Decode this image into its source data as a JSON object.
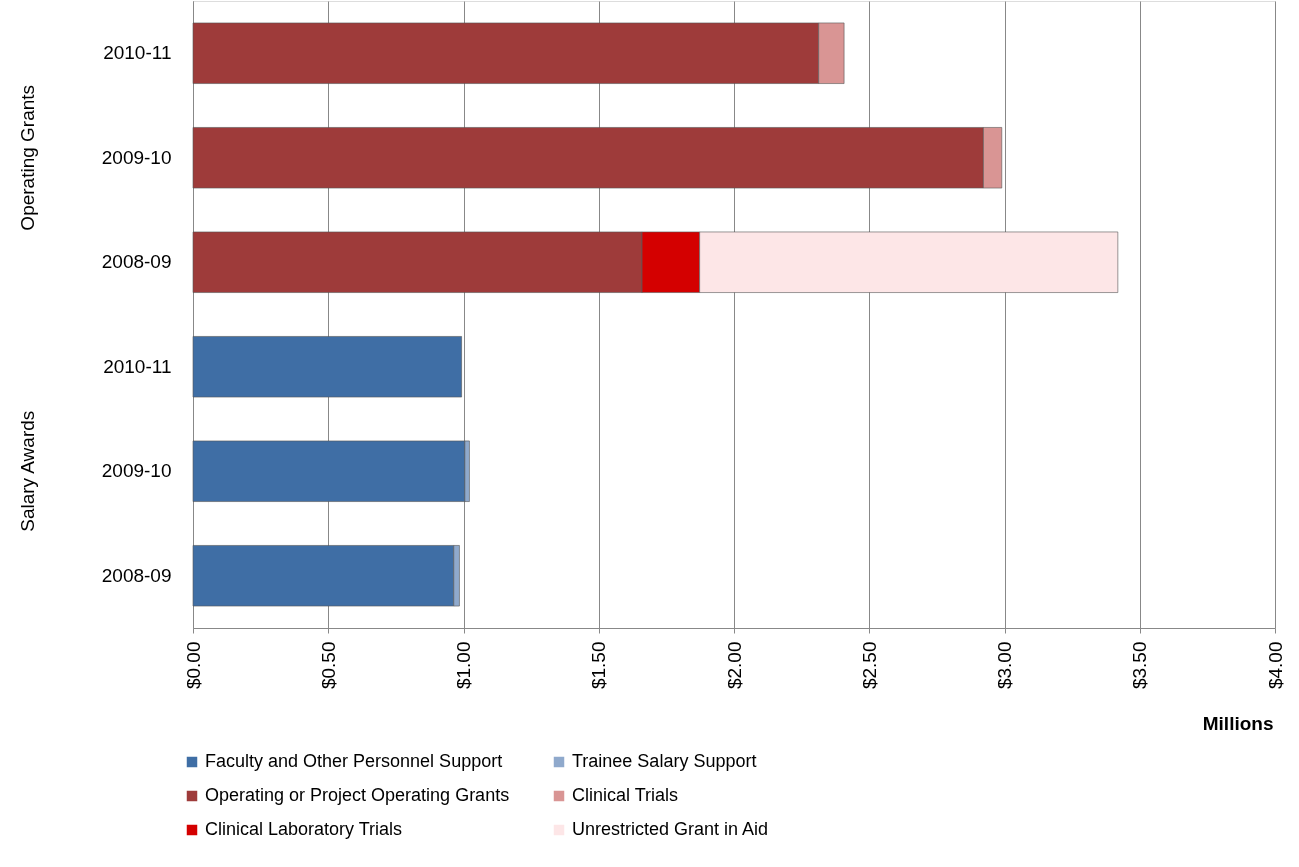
{
  "chart_data": {
    "type": "bar",
    "orientation": "horizontal",
    "stacked": true,
    "categories": [
      "2010-11",
      "2009-10",
      "2008-09",
      "2010-11",
      "2009-10",
      "2008-09"
    ],
    "series": [
      {
        "name": "Faculty and Other Personnel Support",
        "color": "#3f6ea5",
        "values": [
          null,
          null,
          null,
          0.993,
          1.005,
          0.964
        ]
      },
      {
        "name": "Trainee Salary Support",
        "color": "#8fa9cc",
        "values": [
          null,
          null,
          null,
          null,
          0.017,
          0.021
        ]
      },
      {
        "name": "Operating or Project Operating Grants",
        "color": "#9e3b3a",
        "values": [
          2.313,
          2.922,
          1.66,
          null,
          null,
          null
        ]
      },
      {
        "name": "Clinical Trials",
        "color": "#d99594",
        "values": [
          0.094,
          0.068,
          null,
          null,
          null,
          null
        ]
      },
      {
        "name": "Clinical Laboratory Trials",
        "color": "#d40000",
        "values": [
          null,
          null,
          0.213,
          null,
          null,
          null
        ]
      },
      {
        "name": "Unrestricted Grant in Aid",
        "color": "#fde6e7",
        "values": [
          null,
          null,
          1.546,
          null,
          null,
          null
        ]
      }
    ],
    "xlim": [
      0,
      4
    ],
    "xticks": [
      {
        "value": 0,
        "label": "$0.00"
      },
      {
        "value": 0.5,
        "label": "$0.50"
      },
      {
        "value": 1,
        "label": "$1.00"
      },
      {
        "value": 1.5,
        "label": "$1.50"
      },
      {
        "value": 2,
        "label": "$2.00"
      },
      {
        "value": 2.5,
        "label": "$2.50"
      },
      {
        "value": 3,
        "label": "$3.00"
      },
      {
        "value": 3.5,
        "label": "$3.50"
      },
      {
        "value": 4,
        "label": "$4.00"
      }
    ],
    "xlabel": "Millions",
    "annotations": [
      "Operating Grants",
      "Salary Awards"
    ],
    "grid": "x",
    "legend": "bottom"
  }
}
